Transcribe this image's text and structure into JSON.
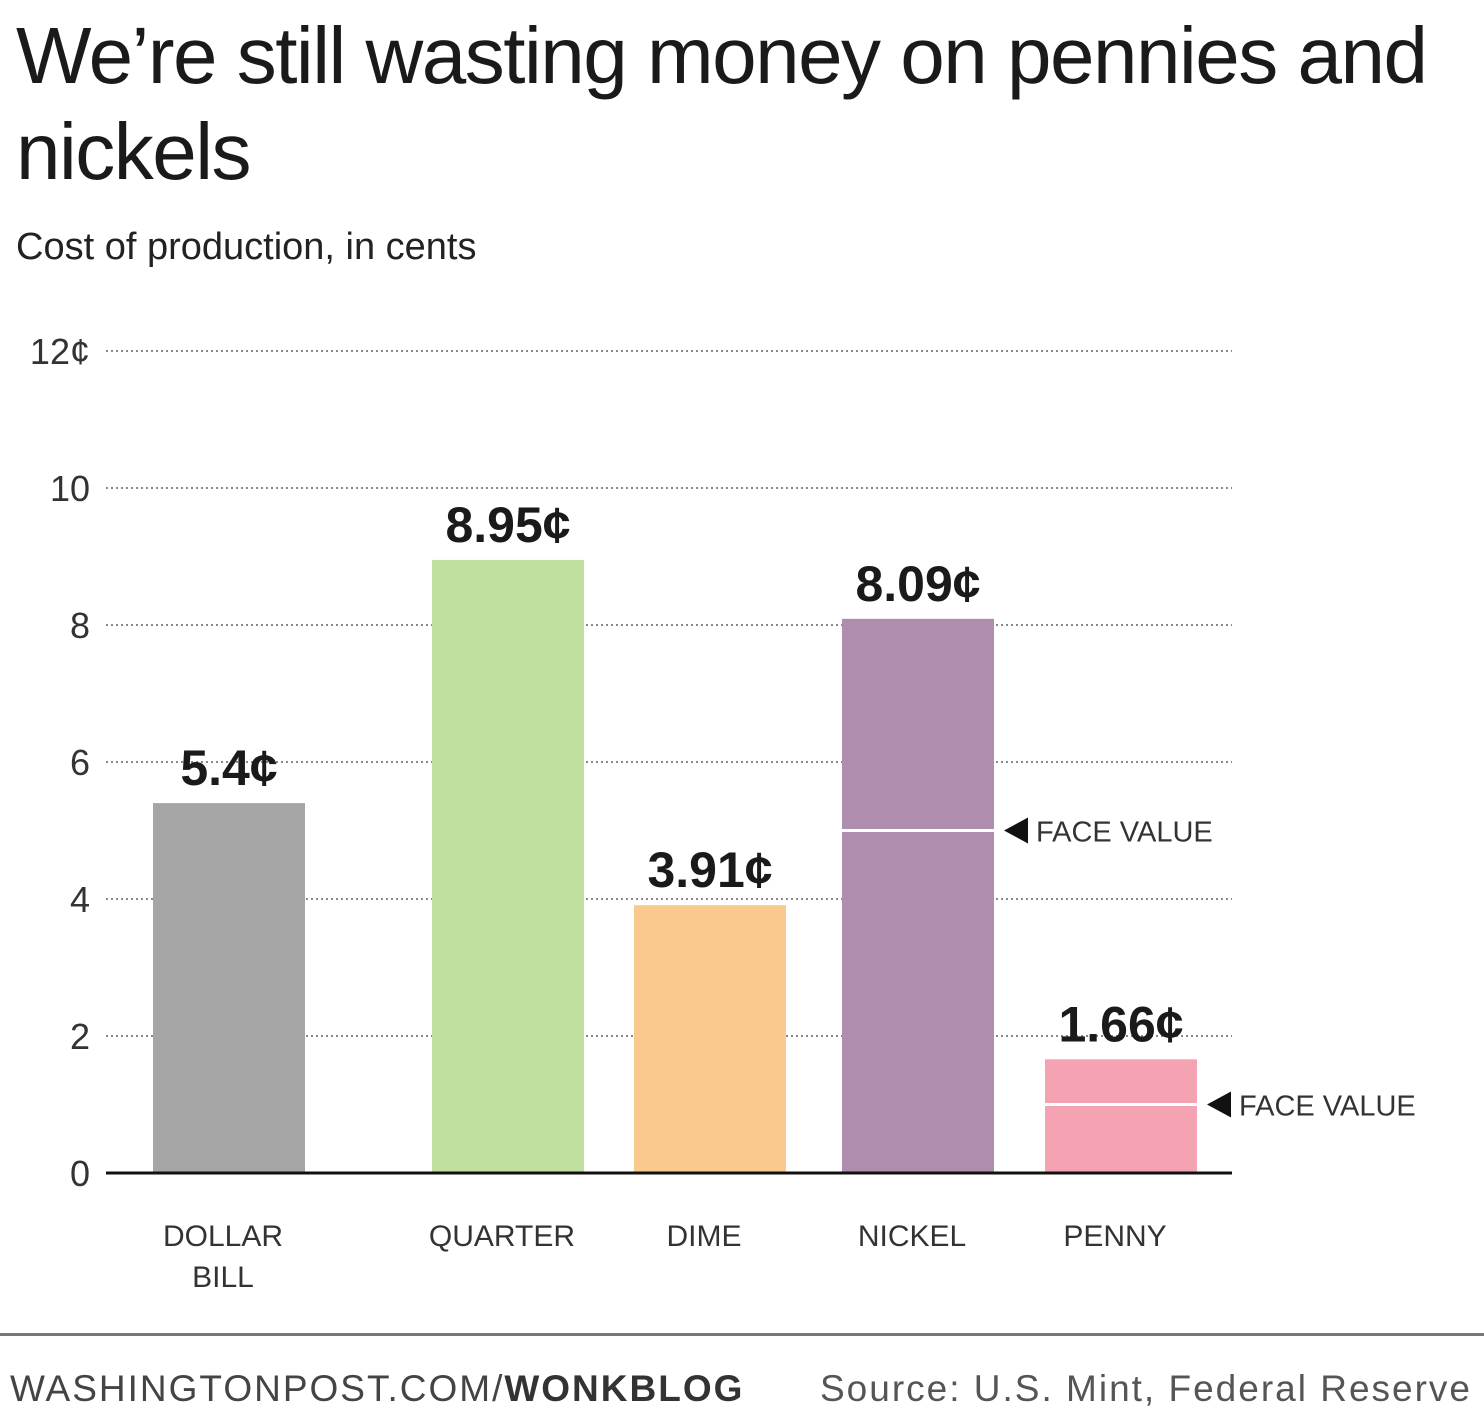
{
  "title": "We’re still wasting money on pennies and nickels",
  "subtitle": "Cost of production, in cents",
  "chart_data": {
    "type": "bar",
    "ylim": [
      0,
      12
    ],
    "yticks": [
      {
        "value": 0,
        "label": "0"
      },
      {
        "value": 2,
        "label": "2"
      },
      {
        "value": 4,
        "label": "4"
      },
      {
        "value": 6,
        "label": "6"
      },
      {
        "value": 8,
        "label": "8"
      },
      {
        "value": 10,
        "label": "10"
      },
      {
        "value": 12,
        "label": "12¢"
      }
    ],
    "grid": "dotted horizontal",
    "bars": [
      {
        "category": [
          "DOLLAR",
          "BILL"
        ],
        "value": 5.4,
        "label": "5.4¢",
        "color": "#a6a6a6"
      },
      {
        "category": [
          "QUARTER"
        ],
        "value": 8.95,
        "label": "8.95¢",
        "color": "#bfe09e"
      },
      {
        "category": [
          "DIME"
        ],
        "value": 3.91,
        "label": "3.91¢",
        "color": "#f9c98e"
      },
      {
        "category": [
          "NICKEL"
        ],
        "value": 8.09,
        "label": "8.09¢",
        "color": "#ae8dae",
        "face_value": 5,
        "face_value_label": "FACE VALUE"
      },
      {
        "category": [
          "PENNY"
        ],
        "value": 1.66,
        "label": "1.66¢",
        "color": "#f5a3b3",
        "face_value": 1,
        "face_value_label": "FACE VALUE"
      }
    ]
  },
  "footer": {
    "site": "WASHINGTONPOST.COM/",
    "blog": "WONKBLOG",
    "source": "Source: U.S. Mint, Federal Reserve"
  }
}
